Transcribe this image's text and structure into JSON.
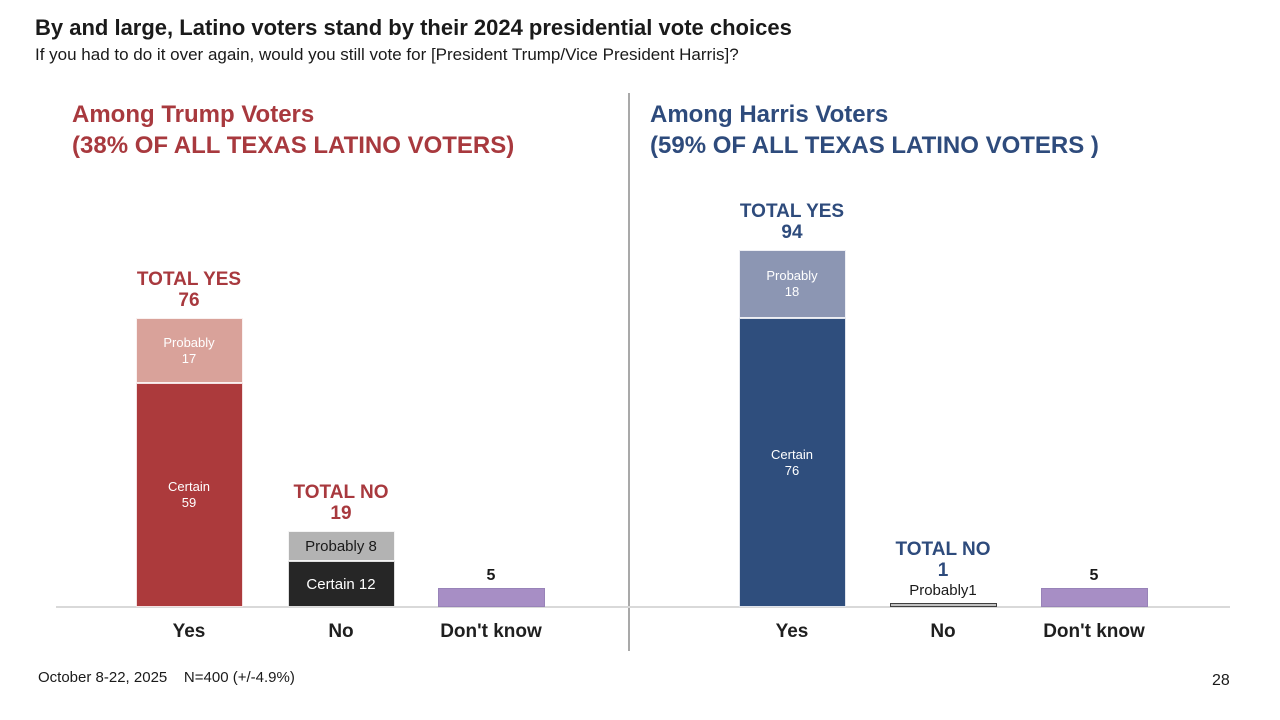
{
  "slide": {
    "title": "By and large, Latino voters stand by their 2024 presidential vote choices",
    "subtitle": "If you had to do it over again, would you still vote for [President Trump/Vice President Harris]?",
    "footer": "October 8-22, 2025    N=400 (+/-4.9%)",
    "page_number": "28"
  },
  "colors": {
    "divider": "#A9A9A9",
    "baseline": "#D9D9D9",
    "title_text": "#1A1A1A"
  },
  "chart_data": [
    {
      "type": "bar",
      "stacked": true,
      "id": "trump-voters",
      "title": "Among Trump Voters",
      "subtitle": "(38% OF ALL TEXAS LATINO VOTERS)",
      "accent_color": "#A8393E",
      "categories": [
        "Yes",
        "No",
        "Don't know"
      ],
      "ylim": [
        0,
        100
      ],
      "grid": false,
      "legend": "labels inside segments",
      "bars": [
        {
          "category": "Yes",
          "total_label": "TOTAL YES",
          "total_value": 76,
          "segments": [
            {
              "name": "Certain",
              "value": 59,
              "color": "#AC3A3C",
              "text_color": "#FFFFFF",
              "label_style": "two-line"
            },
            {
              "name": "Probably",
              "value": 17,
              "color": "#D9A29A",
              "text_color": "#FFFFFF",
              "label_style": "two-line"
            }
          ]
        },
        {
          "category": "No",
          "total_label": "TOTAL NO",
          "total_value": 19,
          "segments": [
            {
              "name": "Certain",
              "value": 12,
              "color": "#262626",
              "text_color": "#FFFFFF",
              "label_style": "inline"
            },
            {
              "name": "Probably",
              "value": 8,
              "color": "#B3B3B3",
              "text_color": "#1A1A1A",
              "label_style": "inline"
            }
          ]
        },
        {
          "category": "Don't know",
          "outside_label": "5",
          "outside_label_bold": true,
          "segments": [
            {
              "name": "Don't know",
              "value": 5,
              "color": "#A78EC5",
              "border_color": "#9883B8",
              "label_style": "none"
            }
          ]
        }
      ]
    },
    {
      "type": "bar",
      "stacked": true,
      "id": "harris-voters",
      "title": "Among Harris Voters",
      "subtitle": "(59% OF ALL TEXAS LATINO VOTERS )",
      "accent_color": "#2E4B7C",
      "categories": [
        "Yes",
        "No",
        "Don't know"
      ],
      "ylim": [
        0,
        100
      ],
      "grid": false,
      "legend": "labels inside segments",
      "bars": [
        {
          "category": "Yes",
          "total_label": "TOTAL YES",
          "total_value": 94,
          "segments": [
            {
              "name": "Certain",
              "value": 76,
              "color": "#2F4E7D",
              "text_color": "#FFFFFF",
              "label_style": "two-line"
            },
            {
              "name": "Probably",
              "value": 18,
              "color": "#8C96B3",
              "text_color": "#FFFFFF",
              "label_style": "two-line"
            }
          ]
        },
        {
          "category": "No",
          "total_label": "TOTAL NO",
          "total_value": 1,
          "outside_label": "Probably1",
          "outside_label_bold": false,
          "segments": [
            {
              "name": "Probably",
              "value": 1,
              "color": "#C2C2C2",
              "border_color": "#3F3F3F",
              "label_style": "none"
            }
          ]
        },
        {
          "category": "Don't know",
          "outside_label": "5",
          "outside_label_bold": true,
          "segments": [
            {
              "name": "Don't know",
              "value": 5,
              "color": "#A78EC5",
              "border_color": "#9883B8",
              "label_style": "none"
            }
          ]
        }
      ]
    }
  ]
}
